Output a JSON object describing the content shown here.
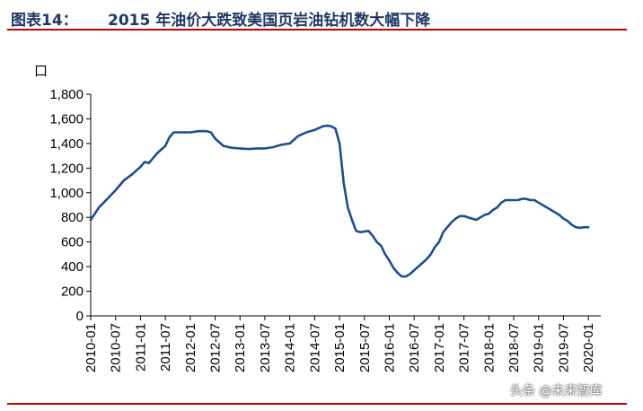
{
  "header": {
    "figure_label": "图表14：",
    "title": "2015 年油价大跌致美国页岩油钻机数大幅下降"
  },
  "watermark": "头条 @未来智库",
  "colors": {
    "line": "#1f4e8c",
    "rule": "#c00000",
    "title": "#1f3864"
  },
  "chart_data": {
    "type": "line",
    "title": "2015 年油价大跌致美国页岩油钻机数大幅下降",
    "ylabel": "口",
    "ylim": [
      0,
      1800
    ],
    "yticks": [
      0,
      200,
      400,
      600,
      800,
      1000,
      1200,
      1400,
      1600,
      1800
    ],
    "ytick_labels": [
      "0",
      "200",
      "400",
      "600",
      "800",
      "1,000",
      "1,200",
      "1,400",
      "1,600",
      "1,800"
    ],
    "xticks": [
      "2010-01",
      "2010-07",
      "2011-01",
      "2011-07",
      "2012-01",
      "2012-07",
      "2013-01",
      "2013-07",
      "2014-01",
      "2014-07",
      "2015-01",
      "2015-07",
      "2016-01",
      "2016-07",
      "2017-01",
      "2017-07",
      "2018-01",
      "2018-07",
      "2019-01",
      "2019-07",
      "2020-01"
    ],
    "grid": false,
    "series": [
      {
        "x": [
          "2010-01",
          "2010-03",
          "2010-05",
          "2010-07",
          "2010-09",
          "2010-11",
          "2011-01",
          "2011-02",
          "2011-03",
          "2011-05",
          "2011-07",
          "2011-08",
          "2011-09",
          "2011-11",
          "2012-01",
          "2012-03",
          "2012-05",
          "2012-06",
          "2012-07",
          "2012-09",
          "2012-11",
          "2013-01",
          "2013-03",
          "2013-05",
          "2013-07",
          "2013-09",
          "2013-11",
          "2014-01",
          "2014-03",
          "2014-05",
          "2014-07",
          "2014-09",
          "2014-10",
          "2014-11",
          "2014-12",
          "2015-01",
          "2015-02",
          "2015-03",
          "2015-04",
          "2015-05",
          "2015-06",
          "2015-07",
          "2015-08",
          "2015-09",
          "2015-10",
          "2015-11",
          "2015-12",
          "2016-01",
          "2016-02",
          "2016-03",
          "2016-04",
          "2016-05",
          "2016-06",
          "2016-07",
          "2016-08",
          "2016-09",
          "2016-10",
          "2016-11",
          "2016-12",
          "2017-01",
          "2017-02",
          "2017-03",
          "2017-04",
          "2017-05",
          "2017-06",
          "2017-07",
          "2017-08",
          "2017-09",
          "2017-10",
          "2017-11",
          "2017-12",
          "2018-01",
          "2018-02",
          "2018-03",
          "2018-04",
          "2018-05",
          "2018-06",
          "2018-07",
          "2018-08",
          "2018-09",
          "2018-10",
          "2018-11",
          "2018-12",
          "2019-01",
          "2019-02",
          "2019-03",
          "2019-04",
          "2019-05",
          "2019-06",
          "2019-07",
          "2019-08",
          "2019-09",
          "2019-10",
          "2019-11",
          "2019-12",
          "2020-01"
        ],
        "values": [
          780,
          880,
          950,
          1020,
          1100,
          1150,
          1210,
          1250,
          1240,
          1320,
          1380,
          1450,
          1490,
          1490,
          1490,
          1500,
          1500,
          1490,
          1440,
          1380,
          1365,
          1360,
          1355,
          1360,
          1360,
          1370,
          1390,
          1400,
          1460,
          1490,
          1510,
          1540,
          1545,
          1540,
          1520,
          1400,
          1080,
          880,
          780,
          690,
          680,
          685,
          690,
          650,
          600,
          570,
          500,
          450,
          390,
          350,
          320,
          320,
          340,
          370,
          400,
          430,
          460,
          500,
          560,
          600,
          680,
          720,
          760,
          790,
          810,
          810,
          800,
          790,
          780,
          800,
          820,
          830,
          860,
          880,
          920,
          940,
          940,
          940,
          940,
          950,
          950,
          940,
          940,
          920,
          900,
          880,
          860,
          840,
          820,
          790,
          770,
          740,
          720,
          715,
          720,
          720
        ]
      }
    ]
  }
}
